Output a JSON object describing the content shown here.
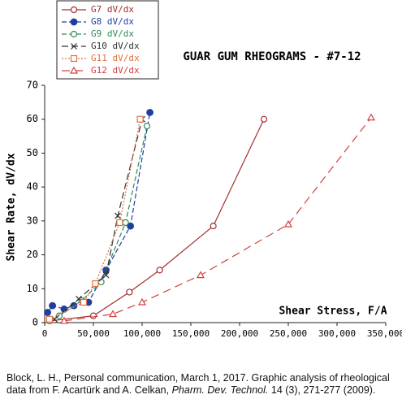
{
  "chart_data": {
    "type": "scatter",
    "title": "GUAR GUM RHEOGRAMS - #7-12",
    "x_label": "Shear Stress, F/A",
    "y_label": "Shear Rate, dV/dx",
    "xlim": [
      0,
      350000
    ],
    "ylim": [
      0,
      70
    ],
    "xticks": [
      0,
      {
        "value": 50000,
        "label": "50,000"
      },
      {
        "value": 100000,
        "label": "100,000"
      },
      {
        "value": 150000,
        "label": "150,000"
      },
      {
        "value": 200000,
        "label": "200,000"
      },
      {
        "value": 250000,
        "label": "250,000"
      },
      {
        "value": 300000,
        "label": "300,000"
      },
      {
        "value": 350000,
        "label": "350,000"
      }
    ],
    "yticks": [
      0,
      10,
      20,
      30,
      40,
      50,
      60,
      70
    ],
    "grid": false,
    "legend": "top-left",
    "series": [
      {
        "name": "G7 dV/dx",
        "color": "#a0302c",
        "marker": "circle-open",
        "dash": "none",
        "x": [
          5000,
          50000,
          87000,
          118000,
          173000,
          225000
        ],
        "values": [
          0.5,
          2,
          9,
          15.5,
          28.5,
          60
        ]
      },
      {
        "name": "G8 dV/dx",
        "color": "#1f3fa0",
        "marker": "circle-filled",
        "dash": "6 3",
        "x": [
          3000,
          8000,
          20000,
          30000,
          45000,
          63000,
          88000,
          108000
        ],
        "values": [
          3,
          5,
          4,
          5,
          6,
          15.5,
          28.5,
          62
        ]
      },
      {
        "name": "G9 dV/dx",
        "color": "#2e8b57",
        "marker": "circle-open",
        "dash": "6 3",
        "x": [
          15000,
          38000,
          58000,
          83000,
          105000
        ],
        "values": [
          2,
          6.5,
          12,
          29.5,
          58
        ]
      },
      {
        "name": "G10 dV/dx",
        "color": "#333333",
        "marker": "x",
        "dash": "8 4",
        "x": [
          10000,
          35000,
          63000,
          75000,
          100000
        ],
        "values": [
          1,
          7,
          14,
          31.5,
          60
        ]
      },
      {
        "name": "G11 dV/dx",
        "color": "#e07040",
        "marker": "square-open",
        "dash": "2 2",
        "x": [
          5000,
          40000,
          52000,
          77000,
          98000
        ],
        "values": [
          1,
          6,
          11.5,
          29.5,
          60
        ]
      },
      {
        "name": "G12 dV/dx",
        "color": "#d04040",
        "marker": "triangle-open",
        "dash": "10 6",
        "x": [
          20000,
          70000,
          100000,
          160000,
          250000,
          335000
        ],
        "values": [
          0.5,
          2.5,
          6,
          14,
          29,
          60.5
        ]
      }
    ]
  },
  "caption": {
    "text1": "Block, L. H., Personal communication, March 1, 2017. Graphic analysis of rheological data from F. Acartürk and A. Celkan, ",
    "journal": "Pharm. Dev. Technol.",
    "text2": " 14 (3), 271-277 (2009)."
  }
}
